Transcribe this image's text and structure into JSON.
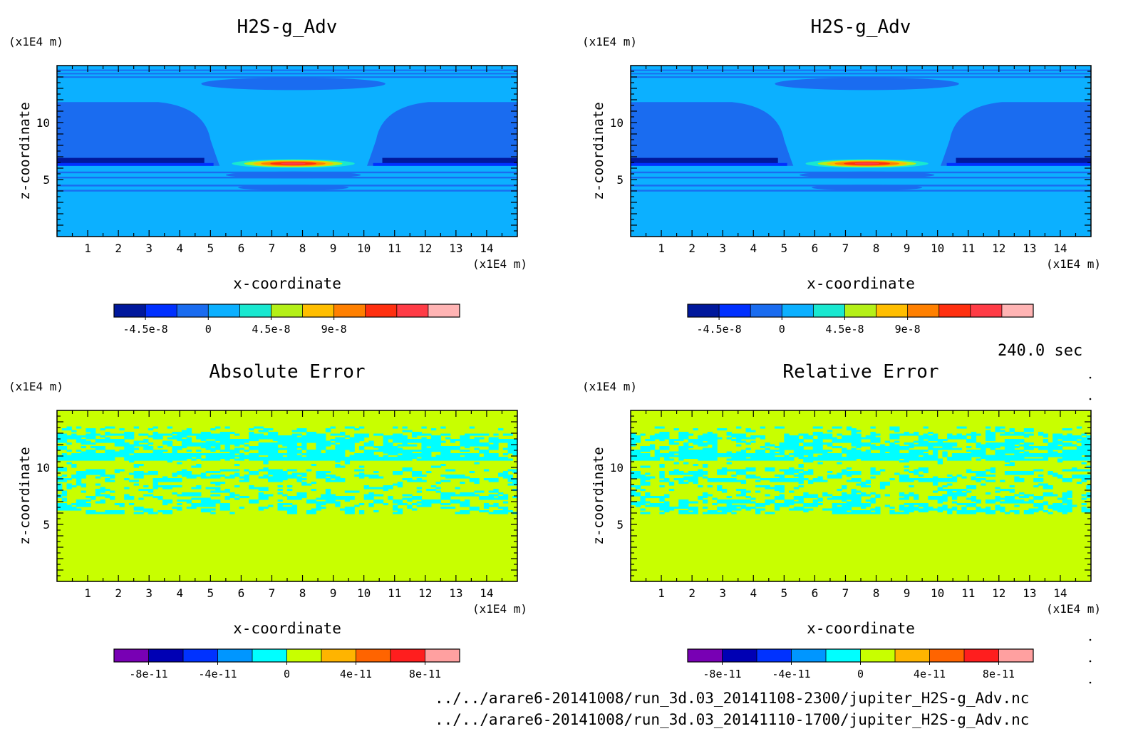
{
  "time_label": "240.0 sec",
  "file_paths": [
    "../../arare6-20141008/run_3d.03_20141108-2300/jupiter_H2S-g_Adv.nc",
    "../../arare6-20141008/run_3d.03_20141110-1700/jupiter_H2S-g_Adv.nc"
  ],
  "chart_data": [
    {
      "type": "heatmap",
      "title": "H2S-g_Adv",
      "xlabel": "x-coordinate",
      "ylabel": "z-coordinate",
      "x_unit": "(x1E4 m)",
      "y_unit": "(x1E4 m)",
      "xlim": [
        0,
        15
      ],
      "ylim": [
        0,
        15
      ],
      "x_ticks": [
        1,
        2,
        3,
        4,
        5,
        6,
        7,
        8,
        9,
        10,
        11,
        12,
        13,
        14
      ],
      "y_ticks": [
        5,
        10
      ],
      "field": "h2s",
      "colorbar": {
        "colors": [
          "#00189c",
          "#0030ff",
          "#1a6cf0",
          "#0cb0ff",
          "#19e8d0",
          "#b4f018",
          "#ffbe00",
          "#ff8000",
          "#ff3010",
          "#ff3c46",
          "#ffb4b4"
        ],
        "tick_labels": [
          "-4.5e-8",
          "0",
          "4.5e-8",
          "9e-8"
        ],
        "tick_boundary_index": [
          1,
          3,
          5,
          7
        ]
      }
    },
    {
      "type": "heatmap",
      "title": "H2S-g_Adv",
      "xlabel": "x-coordinate",
      "ylabel": "z-coordinate",
      "x_unit": "(x1E4 m)",
      "y_unit": "(x1E4 m)",
      "xlim": [
        0,
        15
      ],
      "ylim": [
        0,
        15
      ],
      "x_ticks": [
        1,
        2,
        3,
        4,
        5,
        6,
        7,
        8,
        9,
        10,
        11,
        12,
        13,
        14
      ],
      "y_ticks": [
        5,
        10
      ],
      "field": "h2s",
      "colorbar": {
        "colors": [
          "#00189c",
          "#0030ff",
          "#1a6cf0",
          "#0cb0ff",
          "#19e8d0",
          "#b4f018",
          "#ffbe00",
          "#ff8000",
          "#ff3010",
          "#ff3c46",
          "#ffb4b4"
        ],
        "tick_labels": [
          "-4.5e-8",
          "0",
          "4.5e-8",
          "9e-8"
        ],
        "tick_boundary_index": [
          1,
          3,
          5,
          7
        ]
      }
    },
    {
      "type": "heatmap",
      "title": "Absolute Error",
      "xlabel": "x-coordinate",
      "ylabel": "z-coordinate",
      "x_unit": "(x1E4 m)",
      "y_unit": "(x1E4 m)",
      "xlim": [
        0,
        15
      ],
      "ylim": [
        0,
        15
      ],
      "x_ticks": [
        1,
        2,
        3,
        4,
        5,
        6,
        7,
        8,
        9,
        10,
        11,
        12,
        13,
        14
      ],
      "y_ticks": [
        5,
        10
      ],
      "field": "abs_err",
      "colorbar": {
        "colors": [
          "#7800b4",
          "#0000b4",
          "#0032ff",
          "#0096ff",
          "#00ffff",
          "#c8ff00",
          "#ffb400",
          "#ff6400",
          "#ff1e1e",
          "#ffa0a0"
        ],
        "tick_labels": [
          "-8e-11",
          "-4e-11",
          "0",
          "4e-11",
          "8e-11"
        ],
        "tick_boundary_index": [
          1,
          3,
          5,
          7,
          9
        ]
      }
    },
    {
      "type": "heatmap",
      "title": "Relative Error",
      "xlabel": "x-coordinate",
      "ylabel": "z-coordinate",
      "x_unit": "(x1E4 m)",
      "y_unit": "(x1E4 m)",
      "xlim": [
        0,
        15
      ],
      "ylim": [
        0,
        15
      ],
      "x_ticks": [
        1,
        2,
        3,
        4,
        5,
        6,
        7,
        8,
        9,
        10,
        11,
        12,
        13,
        14
      ],
      "y_ticks": [
        5,
        10
      ],
      "field": "rel_err",
      "colorbar": {
        "colors": [
          "#7800b4",
          "#0000b4",
          "#0032ff",
          "#0096ff",
          "#00ffff",
          "#c8ff00",
          "#ffb400",
          "#ff6400",
          "#ff1e1e",
          "#ffa0a0"
        ],
        "tick_labels": [
          "-8e-11",
          "-4e-11",
          "0",
          "4e-11",
          "8e-11"
        ],
        "tick_boundary_index": [
          1,
          3,
          5,
          7,
          9
        ]
      }
    }
  ]
}
